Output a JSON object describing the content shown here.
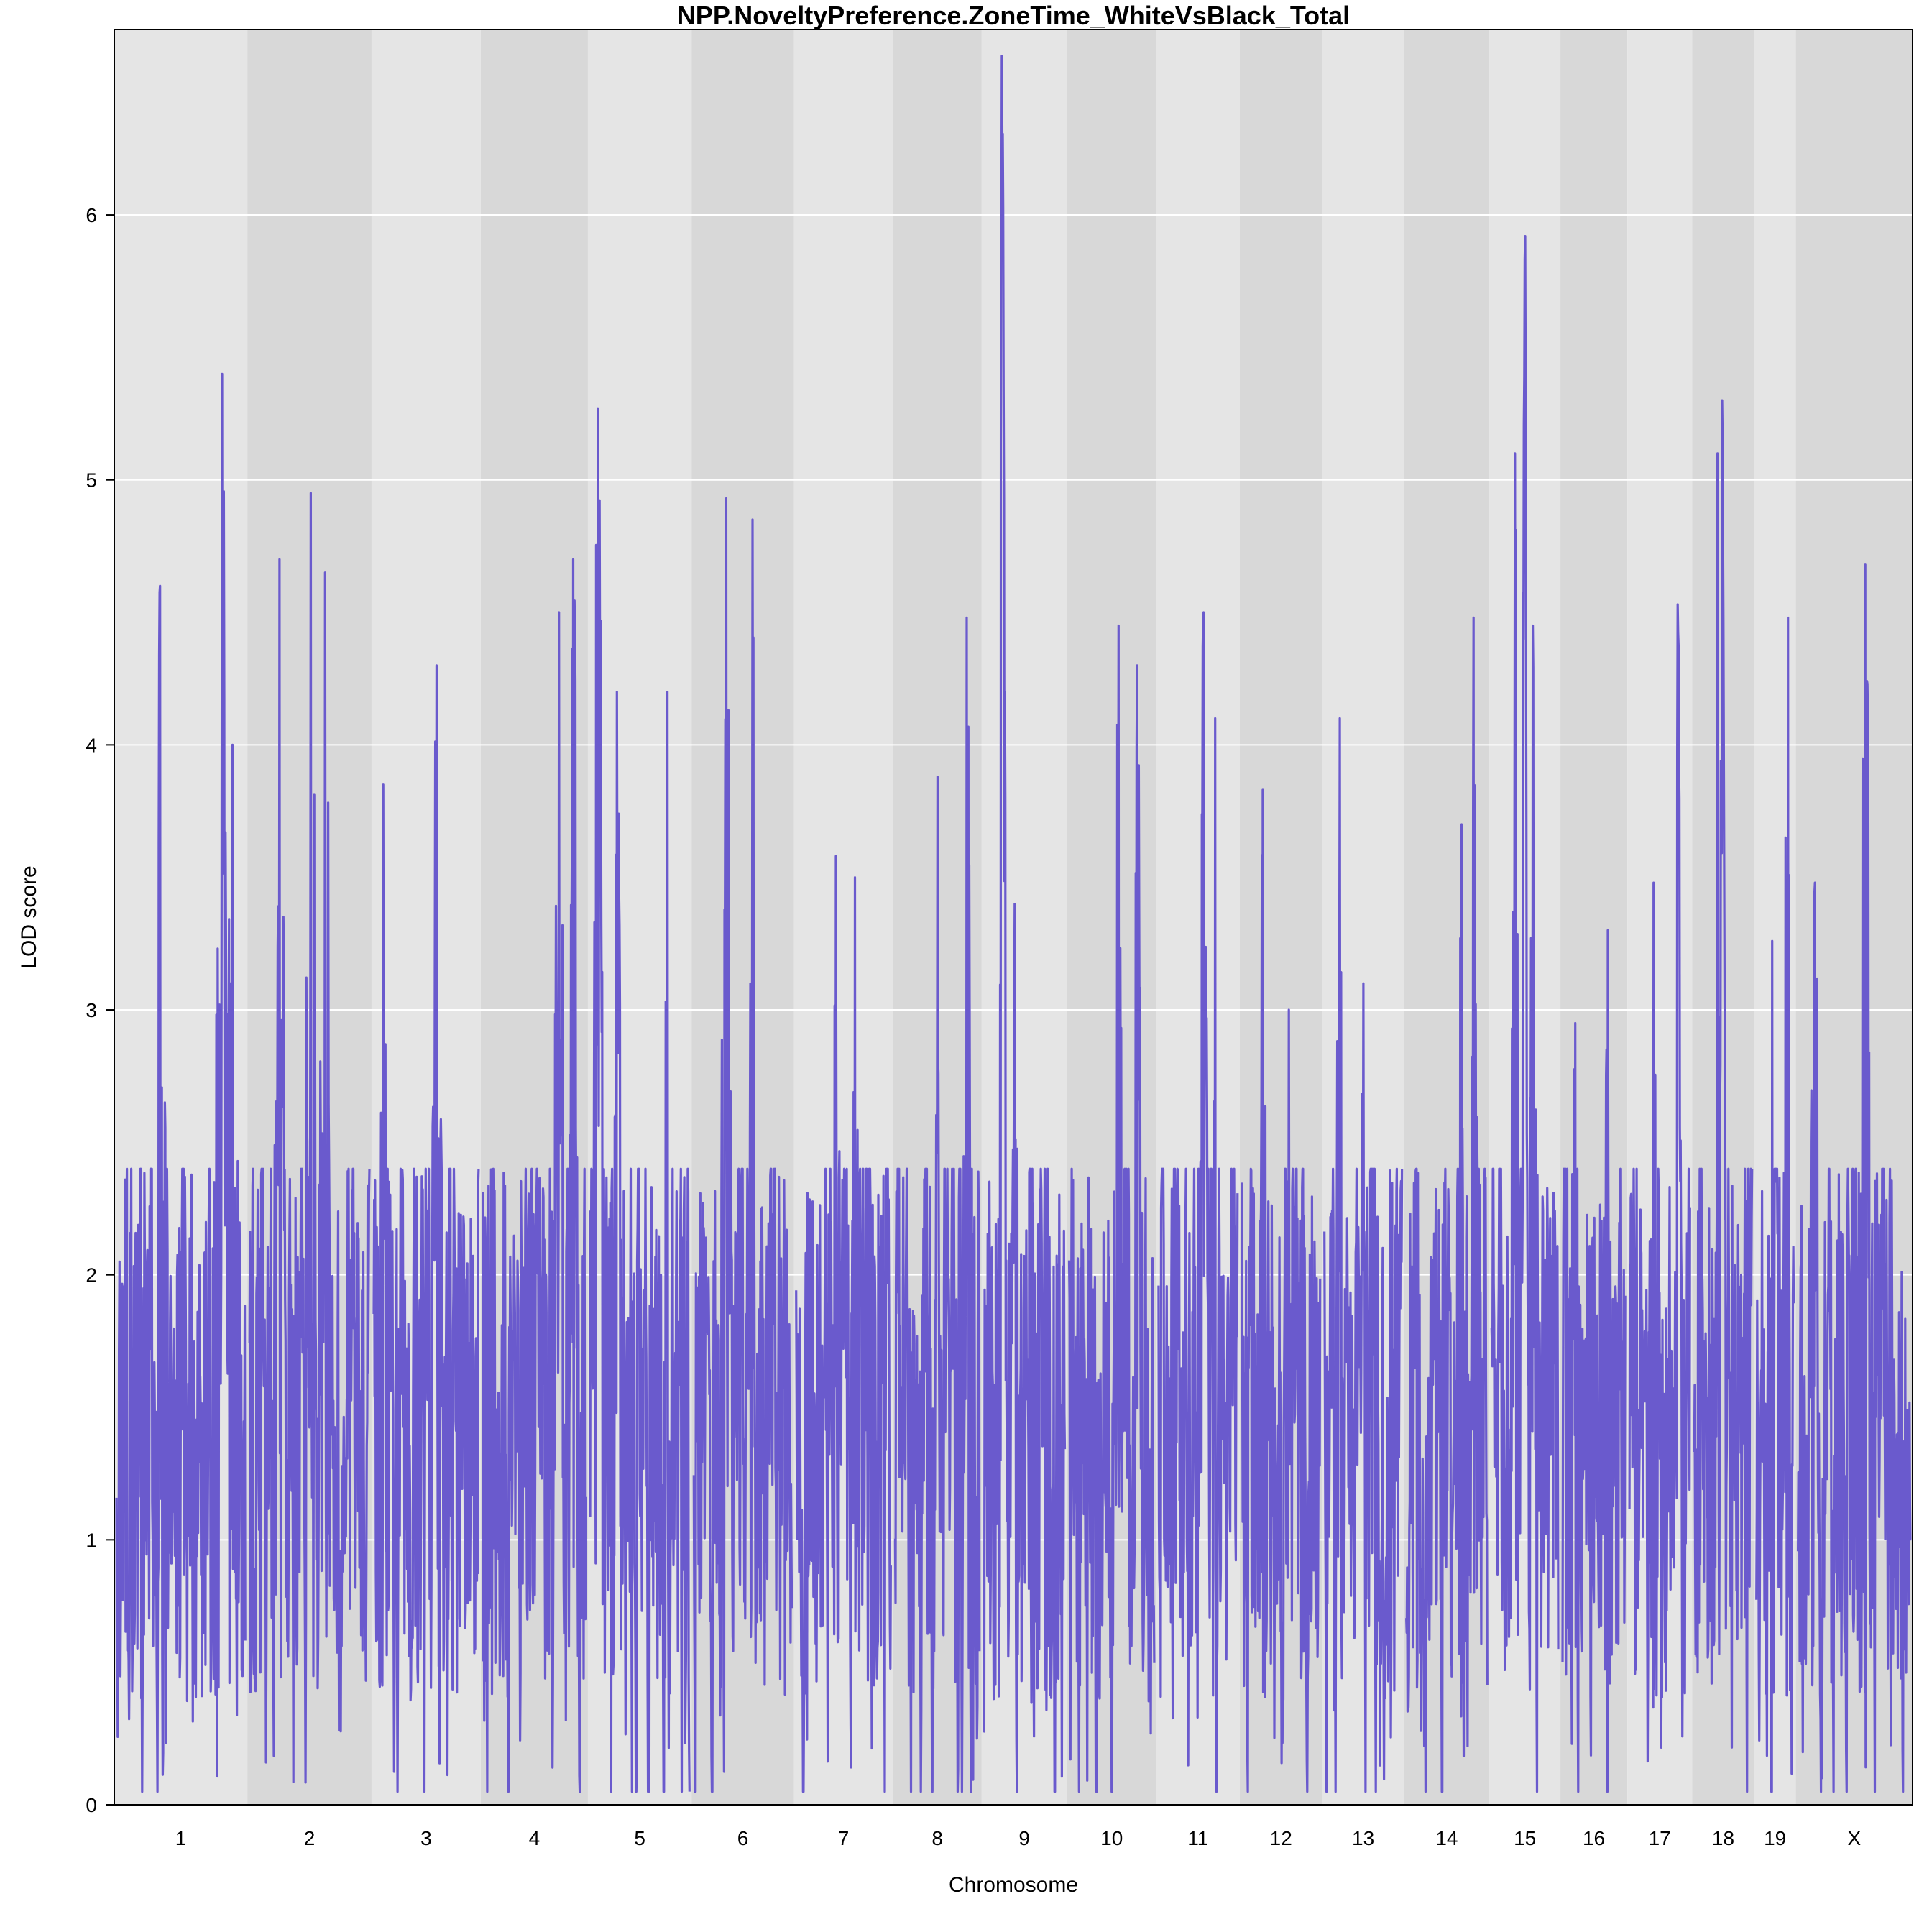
{
  "chart_data": {
    "type": "line",
    "title": "NPP.NoveltyPreference.ZoneTime_WhiteVsBlack_Total",
    "xlabel": "Chromosome",
    "ylabel": "LOD score",
    "ylim": [
      0,
      6.7
    ],
    "yticks": [
      "0",
      "1",
      "2",
      "3",
      "4",
      "5",
      "6"
    ],
    "grid": true,
    "line_color": "#6a5acd",
    "band_colors": [
      "#e5e5e5",
      "#d8d8d8"
    ],
    "chromosomes": [
      {
        "name": "1",
        "length": 195,
        "peaks": [
          [
            0.34,
            4.6
          ],
          [
            0.82,
            5.4
          ],
          [
            0.9,
            4.0
          ]
        ]
      },
      {
        "name": "2",
        "length": 182,
        "peaks": [
          [
            0.25,
            4.7
          ],
          [
            0.51,
            4.95
          ],
          [
            0.63,
            4.65
          ]
        ]
      },
      {
        "name": "3",
        "length": 160,
        "peaks": [
          [
            0.09,
            3.85
          ],
          [
            0.6,
            4.3
          ]
        ]
      },
      {
        "name": "4",
        "length": 157,
        "peaks": [
          [
            0.74,
            4.5
          ],
          [
            0.88,
            4.7
          ]
        ]
      },
      {
        "name": "5",
        "length": 152,
        "peaks": [
          [
            0.08,
            5.27
          ],
          [
            0.27,
            4.2
          ],
          [
            0.78,
            4.2
          ]
        ]
      },
      {
        "name": "6",
        "length": 150,
        "peaks": [
          [
            0.33,
            4.93
          ],
          [
            0.6,
            4.85
          ]
        ]
      },
      {
        "name": "7",
        "length": 145,
        "peaks": [
          [
            0.42,
            3.58
          ],
          [
            0.62,
            3.5
          ]
        ]
      },
      {
        "name": "8",
        "length": 130,
        "peaks": [
          [
            0.5,
            3.88
          ],
          [
            0.85,
            4.48
          ]
        ]
      },
      {
        "name": "9",
        "length": 125,
        "peaks": [
          [
            0.22,
            6.6
          ],
          [
            0.38,
            3.4
          ]
        ]
      },
      {
        "name": "10",
        "length": 131,
        "peaks": [
          [
            0.58,
            4.45
          ],
          [
            0.8,
            4.3
          ]
        ]
      },
      {
        "name": "11",
        "length": 122,
        "peaks": [
          [
            0.57,
            4.5
          ],
          [
            0.72,
            4.1
          ]
        ]
      },
      {
        "name": "12",
        "length": 121,
        "peaks": [
          [
            0.27,
            3.83
          ],
          [
            0.6,
            3.0
          ]
        ]
      },
      {
        "name": "13",
        "length": 120,
        "peaks": [
          [
            0.2,
            4.1
          ],
          [
            0.5,
            3.1
          ]
        ]
      },
      {
        "name": "14",
        "length": 125,
        "peaks": [
          [
            0.68,
            3.7
          ],
          [
            0.83,
            4.48
          ]
        ]
      },
      {
        "name": "15",
        "length": 104,
        "peaks": [
          [
            0.35,
            5.1
          ],
          [
            0.5,
            5.92
          ],
          [
            0.62,
            4.45
          ]
        ]
      },
      {
        "name": "16",
        "length": 98,
        "peaks": [
          [
            0.2,
            2.95
          ],
          [
            0.72,
            3.3
          ]
        ]
      },
      {
        "name": "17",
        "length": 95,
        "peaks": [
          [
            0.4,
            3.48
          ],
          [
            0.8,
            4.53
          ]
        ]
      },
      {
        "name": "18",
        "length": 91,
        "peaks": [
          [
            0.4,
            5.1
          ],
          [
            0.48,
            5.3
          ]
        ]
      },
      {
        "name": "19",
        "length": 61,
        "peaks": [
          [
            0.42,
            3.26
          ],
          [
            0.78,
            3.65
          ],
          [
            0.85,
            4.48
          ]
        ]
      },
      {
        "name": "X",
        "length": 171,
        "peaks": [
          [
            0.15,
            3.48
          ],
          [
            0.6,
            4.68
          ]
        ]
      }
    ],
    "profile_seed": 20240517
  }
}
